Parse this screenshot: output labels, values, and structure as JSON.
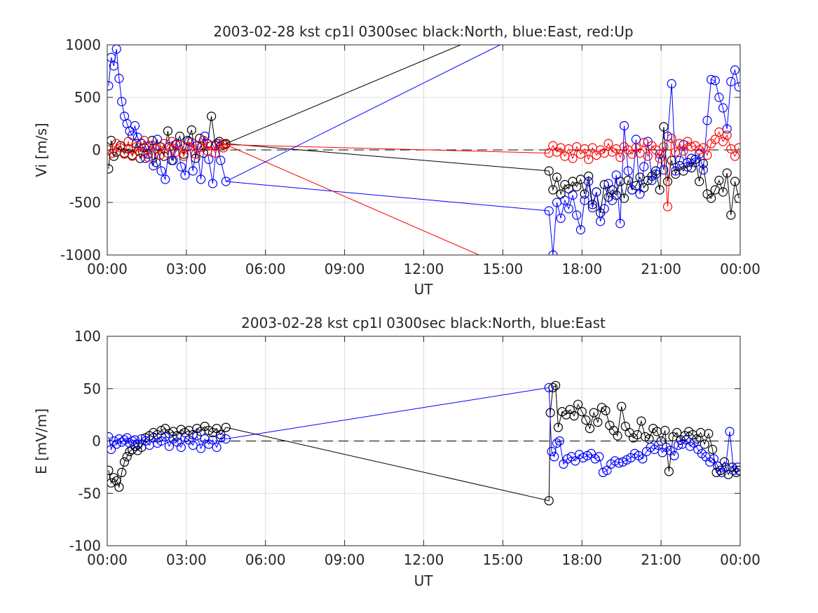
{
  "chart_data": [
    {
      "type": "line",
      "title": "2003-02-28 kst cp1l 0300sec black:North, blue:East, red:Up",
      "xlabel": "UT",
      "ylabel": "Vi [m/s]",
      "xlim": [
        0,
        24
      ],
      "ylim": [
        -1000,
        1000
      ],
      "xticks": [
        0,
        3,
        6,
        9,
        12,
        15,
        18,
        21,
        24
      ],
      "xticklabels": [
        "00:00",
        "03:00",
        "06:00",
        "09:00",
        "12:00",
        "15:00",
        "18:00",
        "21:00",
        "00:00"
      ],
      "yticks": [
        -1000,
        -500,
        0,
        500,
        1000
      ],
      "yticklabels": [
        "-1000",
        "-500",
        "0",
        "500",
        "1000"
      ],
      "grid": true,
      "zero_line": "dashed",
      "marker": "circle",
      "series": [
        {
          "color": "#000000",
          "x": [
            0.05,
            0.15,
            0.25,
            0.35,
            0.5,
            0.65,
            0.8,
            0.95,
            1.1,
            1.25,
            1.4,
            1.55,
            1.7,
            1.85,
            2.0,
            2.15,
            2.3,
            2.45,
            2.6,
            2.75,
            2.9,
            3.05,
            3.2,
            3.35,
            3.5,
            3.65,
            3.8,
            3.95,
            4.1,
            4.25,
            4.4,
            4.5,
            16.75,
            16.9,
            17.05,
            17.2,
            17.35,
            17.5,
            17.65,
            17.8,
            17.95,
            18.1,
            18.25,
            18.4,
            18.55,
            18.7,
            18.85,
            19.0,
            19.15,
            19.3,
            19.45,
            19.6,
            19.75,
            19.9,
            20.05,
            20.2,
            20.35,
            20.5,
            20.65,
            20.8,
            20.95,
            21.1,
            21.25,
            21.4,
            21.55,
            21.7,
            21.85,
            22.0,
            22.15,
            22.3,
            22.45,
            22.6,
            22.75,
            22.9,
            23.05,
            23.2,
            23.35,
            23.5,
            23.65,
            23.8,
            23.95
          ],
          "values": [
            -180,
            90,
            -60,
            -20,
            40,
            -30,
            10,
            -50,
            60,
            -80,
            20,
            -40,
            90,
            -120,
            30,
            -60,
            180,
            -100,
            50,
            130,
            -40,
            90,
            190,
            -80,
            110,
            -30,
            60,
            320,
            40,
            80,
            50,
            60,
            -200,
            -380,
            -260,
            -420,
            -330,
            -370,
            -300,
            -350,
            -280,
            -420,
            -250,
            -520,
            -400,
            -600,
            -330,
            -450,
            -380,
            -430,
            -300,
            -460,
            -290,
            -380,
            -340,
            -260,
            -360,
            -290,
            -250,
            -200,
            -380,
            220,
            -300,
            -100,
            -230,
            -150,
            -200,
            -120,
            -170,
            -90,
            -300,
            -130,
            -420,
            -460,
            -380,
            -290,
            -400,
            -220,
            -620,
            -300,
            -460
          ]
        },
        {
          "color": "#0000ff",
          "x": [
            0.05,
            0.15,
            0.25,
            0.35,
            0.45,
            0.55,
            0.65,
            0.75,
            0.85,
            0.95,
            1.05,
            1.15,
            1.3,
            1.45,
            1.6,
            1.75,
            1.9,
            2.05,
            2.2,
            2.35,
            2.5,
            2.65,
            2.8,
            2.95,
            3.1,
            3.25,
            3.4,
            3.55,
            3.7,
            3.85,
            4.0,
            4.15,
            4.3,
            4.5,
            16.75,
            16.9,
            17.05,
            17.2,
            17.35,
            17.5,
            17.65,
            17.8,
            17.95,
            18.1,
            18.25,
            18.4,
            18.55,
            18.7,
            18.85,
            19.0,
            19.15,
            19.3,
            19.45,
            19.6,
            19.75,
            19.9,
            20.05,
            20.2,
            20.35,
            20.5,
            20.65,
            20.8,
            20.95,
            21.1,
            21.25,
            21.4,
            21.55,
            21.7,
            21.85,
            22.0,
            22.15,
            22.3,
            22.45,
            22.6,
            22.75,
            22.9,
            23.05,
            23.2,
            23.35,
            23.5,
            23.65,
            23.8,
            23.95
          ],
          "values": [
            610,
            880,
            800,
            960,
            680,
            460,
            320,
            250,
            180,
            140,
            230,
            120,
            60,
            -80,
            40,
            -150,
            100,
            -200,
            -280,
            30,
            -100,
            60,
            -160,
            -240,
            80,
            -200,
            40,
            -280,
            130,
            -90,
            -320,
            60,
            -100,
            -300,
            -580,
            -1000,
            -500,
            -650,
            -480,
            -560,
            -430,
            -620,
            -760,
            -480,
            -300,
            -550,
            -400,
            -680,
            -560,
            -320,
            -480,
            -240,
            -700,
            230,
            -200,
            -380,
            100,
            -420,
            -160,
            80,
            -290,
            -230,
            -40,
            -190,
            130,
            630,
            -200,
            -100,
            50,
            -160,
            -80,
            -120,
            -40,
            -190,
            280,
            670,
            660,
            500,
            400,
            200,
            650,
            760,
            600
          ]
        },
        {
          "color": "#ff0000",
          "x": [
            0.05,
            0.2,
            0.35,
            0.5,
            0.65,
            0.8,
            0.95,
            1.1,
            1.25,
            1.4,
            1.55,
            1.7,
            1.85,
            2.0,
            2.15,
            2.3,
            2.45,
            2.6,
            2.75,
            2.9,
            3.05,
            3.2,
            3.35,
            3.5,
            3.65,
            3.8,
            3.95,
            4.1,
            4.25,
            4.4,
            4.5,
            16.75,
            16.9,
            17.05,
            17.2,
            17.35,
            17.5,
            17.65,
            17.8,
            17.95,
            18.1,
            18.25,
            18.4,
            18.55,
            18.7,
            18.85,
            19.0,
            19.15,
            19.3,
            19.45,
            19.6,
            19.75,
            19.9,
            20.05,
            20.2,
            20.35,
            20.5,
            20.65,
            20.8,
            20.95,
            21.1,
            21.25,
            21.4,
            21.55,
            21.7,
            21.85,
            22.0,
            22.15,
            22.3,
            22.45,
            22.6,
            22.75,
            22.9,
            23.05,
            23.2,
            23.35,
            23.5,
            23.65,
            23.8,
            23.95
          ],
          "values": [
            0,
            -30,
            60,
            20,
            -40,
            80,
            -60,
            30,
            -20,
            90,
            -70,
            40,
            10,
            -50,
            60,
            -30,
            80,
            -20,
            50,
            -60,
            30,
            70,
            -40,
            20,
            90,
            -10,
            40,
            -30,
            60,
            20,
            50,
            -30,
            40,
            -20,
            20,
            -60,
            10,
            -80,
            30,
            -40,
            10,
            -90,
            20,
            -50,
            0,
            -30,
            60,
            -20,
            10,
            -70,
            30,
            0,
            -40,
            20,
            -30,
            70,
            -60,
            40,
            0,
            -80,
            30,
            -540,
            110,
            -20,
            60,
            -10,
            80,
            30,
            40,
            0,
            20,
            -50,
            60,
            100,
            170,
            80,
            140,
            10,
            -60,
            20
          ]
        }
      ],
      "extra_points": [
        {
          "color": "#ff0000",
          "x": 14.1,
          "y": -1000
        },
        {
          "color": "#000000",
          "x": 13.4,
          "y": 1000
        },
        {
          "color": "#0000ff",
          "x": 14.9,
          "y": 1000
        }
      ]
    },
    {
      "type": "line",
      "title": "2003-02-28 kst cp1l 0300sec black:North, blue:East",
      "xlabel": "UT",
      "ylabel": "E [mV/m]",
      "xlim": [
        0,
        24
      ],
      "ylim": [
        -100,
        100
      ],
      "xticks": [
        0,
        3,
        6,
        9,
        12,
        15,
        18,
        21,
        24
      ],
      "xticklabels": [
        "00:00",
        "03:00",
        "06:00",
        "09:00",
        "12:00",
        "15:00",
        "18:00",
        "21:00",
        "00:00"
      ],
      "yticks": [
        -100,
        -50,
        0,
        50,
        100
      ],
      "yticklabels": [
        "-100",
        "-50",
        "0",
        "50",
        "100"
      ],
      "grid": true,
      "zero_line": "dashed",
      "marker": "circle",
      "series": [
        {
          "color": "#000000",
          "x": [
            0.05,
            0.15,
            0.25,
            0.35,
            0.45,
            0.55,
            0.65,
            0.75,
            0.85,
            0.95,
            1.05,
            1.15,
            1.3,
            1.45,
            1.6,
            1.75,
            1.9,
            2.05,
            2.2,
            2.35,
            2.5,
            2.65,
            2.8,
            2.95,
            3.1,
            3.25,
            3.4,
            3.55,
            3.7,
            3.85,
            4.0,
            4.15,
            4.3,
            4.5,
            16.75,
            16.8,
            16.9,
            17.0,
            17.1,
            17.25,
            17.4,
            17.55,
            17.7,
            17.85,
            18.0,
            18.15,
            18.3,
            18.45,
            18.6,
            18.75,
            18.9,
            19.05,
            19.2,
            19.35,
            19.5,
            19.65,
            19.8,
            19.95,
            20.1,
            20.25,
            20.4,
            20.55,
            20.7,
            20.85,
            21.0,
            21.15,
            21.3,
            21.45,
            21.6,
            21.75,
            21.9,
            22.05,
            22.2,
            22.35,
            22.5,
            22.65,
            22.8,
            22.95,
            23.1,
            23.25,
            23.4,
            23.55,
            23.7,
            23.85,
            23.95
          ],
          "values": [
            -28,
            -40,
            -35,
            -38,
            -44,
            -30,
            -20,
            -15,
            -10,
            -8,
            -5,
            -9,
            -6,
            3,
            5,
            8,
            6,
            10,
            12,
            7,
            9,
            5,
            11,
            8,
            10,
            6,
            12,
            9,
            14,
            10,
            8,
            12,
            6,
            13,
            -57,
            27,
            51,
            53,
            13,
            28,
            25,
            30,
            24,
            35,
            28,
            20,
            12,
            27,
            18,
            32,
            29,
            15,
            10,
            5,
            33,
            14,
            8,
            3,
            6,
            19,
            4,
            2,
            12,
            9,
            0,
            10,
            -29,
            4,
            8,
            1,
            5,
            9,
            6,
            2,
            8,
            -3,
            7,
            -8,
            -30,
            -28,
            -20,
            -32,
            -25,
            -30,
            -28
          ]
        },
        {
          "color": "#0000ff",
          "x": [
            0.05,
            0.15,
            0.25,
            0.35,
            0.45,
            0.55,
            0.65,
            0.75,
            0.85,
            0.95,
            1.05,
            1.15,
            1.3,
            1.45,
            1.6,
            1.75,
            1.9,
            2.05,
            2.2,
            2.35,
            2.5,
            2.65,
            2.8,
            2.95,
            3.1,
            3.25,
            3.4,
            3.55,
            3.7,
            3.85,
            4.0,
            4.15,
            4.3,
            4.5,
            16.75,
            16.85,
            16.95,
            17.05,
            17.15,
            17.3,
            17.45,
            17.6,
            17.75,
            17.9,
            18.05,
            18.2,
            18.35,
            18.5,
            18.65,
            18.8,
            18.95,
            19.1,
            19.25,
            19.4,
            19.55,
            19.7,
            19.85,
            20.0,
            20.15,
            20.3,
            20.45,
            20.6,
            20.75,
            20.9,
            21.05,
            21.2,
            21.35,
            21.5,
            21.65,
            21.8,
            21.95,
            22.1,
            22.25,
            22.4,
            22.55,
            22.7,
            22.85,
            23.0,
            23.15,
            23.3,
            23.45,
            23.6,
            23.75,
            23.9
          ],
          "values": [
            4,
            -8,
            0,
            -3,
            2,
            -1,
            1,
            3,
            -2,
            0,
            1,
            -3,
            2,
            0,
            -4,
            3,
            -2,
            0,
            4,
            -5,
            2,
            -1,
            -6,
            3,
            1,
            -4,
            5,
            -7,
            2,
            -3,
            1,
            -6,
            3,
            2,
            51,
            -10,
            -15,
            -2,
            0,
            -22,
            -17,
            -15,
            -19,
            -13,
            -16,
            -14,
            -12,
            -17,
            -15,
            -30,
            -28,
            -22,
            -19,
            -21,
            -20,
            -18,
            -16,
            -12,
            -14,
            -17,
            -10,
            -6,
            -8,
            -4,
            -11,
            -6,
            -9,
            -14,
            -4,
            -3,
            1,
            -5,
            -2,
            -8,
            -12,
            -15,
            -20,
            -17,
            -24,
            -30,
            -25,
            9,
            -28,
            -25
          ]
        }
      ]
    }
  ]
}
